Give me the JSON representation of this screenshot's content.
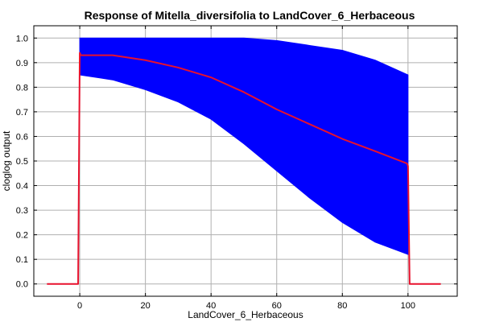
{
  "chart_data": {
    "type": "line",
    "title": "Response of Mitella_diversifolia to LandCover_6_Herbaceous",
    "xlabel": "LandCover_6_Herbaceous",
    "ylabel": "cloglog output",
    "xlim": [
      -14,
      115
    ],
    "ylim": [
      -0.05,
      1.05
    ],
    "xticks": [
      0,
      20,
      40,
      60,
      80,
      100
    ],
    "yticks": [
      0.0,
      0.1,
      0.2,
      0.3,
      0.4,
      0.5,
      0.6,
      0.7,
      0.8,
      0.9,
      1.0
    ],
    "xtick_labels": [
      "0",
      "20",
      "40",
      "60",
      "80",
      "100"
    ],
    "ytick_labels": [
      "0.0",
      "0.1",
      "0.2",
      "0.3",
      "0.4",
      "0.5",
      "0.6",
      "0.7",
      "0.8",
      "0.9",
      "1.0"
    ],
    "grid": true,
    "series": [
      {
        "role": "band-upper",
        "color": "#0000ff",
        "x": [
          0,
          10,
          20,
          30,
          40,
          50,
          60,
          70,
          80,
          90,
          100
        ],
        "values": [
          1.0,
          1.0,
          1.0,
          1.0,
          1.0,
          1.0,
          0.99,
          0.97,
          0.95,
          0.91,
          0.85
        ]
      },
      {
        "role": "band-lower",
        "color": "#0000ff",
        "x": [
          0,
          10,
          20,
          30,
          40,
          50,
          60,
          70,
          80,
          90,
          100
        ],
        "values": [
          0.85,
          0.83,
          0.79,
          0.74,
          0.67,
          0.57,
          0.46,
          0.35,
          0.25,
          0.17,
          0.12
        ]
      },
      {
        "role": "mean-line",
        "color": "#e8112d",
        "x": [
          -10,
          -0.5,
          0,
          0.3,
          10,
          20,
          30,
          40,
          50,
          60,
          70,
          80,
          90,
          99.7,
          100,
          100.5,
          110
        ],
        "values": [
          0.0,
          0.0,
          0.94,
          0.93,
          0.93,
          0.91,
          0.88,
          0.84,
          0.78,
          0.71,
          0.65,
          0.59,
          0.54,
          0.49,
          0.48,
          0.0,
          0.0
        ]
      }
    ]
  }
}
